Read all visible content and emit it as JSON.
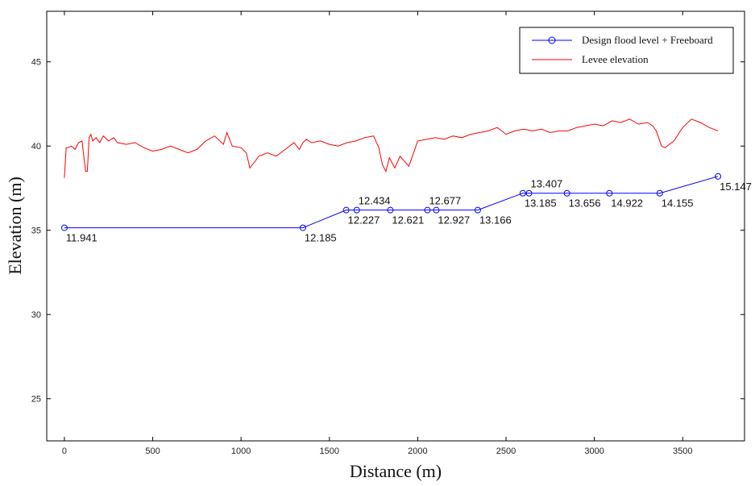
{
  "chart_data": {
    "type": "line",
    "xlabel": "Distance (m)",
    "ylabel": "Elevation (m)",
    "xlim": [
      -100,
      3850
    ],
    "ylim": [
      22.5,
      48
    ],
    "x_ticks": [
      0,
      500,
      1000,
      1500,
      2000,
      2500,
      3000,
      3500
    ],
    "y_ticks": [
      25,
      30,
      35,
      40,
      45
    ],
    "grid": false,
    "legend_position": "top-right",
    "series": [
      {
        "name": "Design flood level + Freeboard",
        "color": "#0000ff",
        "marker": "circle",
        "x": [
          0,
          1350,
          1595,
          1655,
          1845,
          2055,
          2105,
          2340,
          2595,
          2630,
          2845,
          3085,
          3370,
          3700
        ],
        "y": [
          35.15,
          35.15,
          36.2,
          36.2,
          36.2,
          36.2,
          36.2,
          36.2,
          37.2,
          37.2,
          37.2,
          37.2,
          37.2,
          38.2
        ]
      },
      {
        "name": "Levee elevation",
        "color": "#ff0000",
        "marker": "none",
        "x": [
          0,
          10,
          20,
          40,
          60,
          80,
          100,
          120,
          130,
          140,
          150,
          160,
          180,
          200,
          220,
          250,
          280,
          300,
          350,
          400,
          450,
          500,
          550,
          600,
          650,
          700,
          750,
          800,
          850,
          900,
          920,
          950,
          1000,
          1030,
          1050,
          1080,
          1100,
          1150,
          1200,
          1250,
          1300,
          1330,
          1350,
          1370,
          1400,
          1450,
          1500,
          1550,
          1600,
          1650,
          1700,
          1750,
          1780,
          1800,
          1820,
          1840,
          1870,
          1900,
          1950,
          2000,
          2050,
          2100,
          2150,
          2200,
          2250,
          2300,
          2350,
          2400,
          2450,
          2500,
          2550,
          2600,
          2650,
          2700,
          2750,
          2800,
          2850,
          2900,
          2950,
          3000,
          3050,
          3100,
          3150,
          3200,
          3250,
          3300,
          3330,
          3350,
          3380,
          3400,
          3450,
          3500,
          3550,
          3600,
          3650,
          3700
        ],
        "y": [
          38.1,
          39.9,
          39.9,
          40.0,
          39.8,
          40.2,
          40.3,
          38.5,
          38.5,
          40.5,
          40.7,
          40.3,
          40.5,
          40.2,
          40.6,
          40.3,
          40.5,
          40.2,
          40.1,
          40.2,
          39.9,
          39.7,
          39.8,
          40.0,
          39.8,
          39.6,
          39.8,
          40.3,
          40.6,
          40.1,
          40.8,
          40.0,
          39.9,
          39.6,
          38.7,
          39.1,
          39.4,
          39.6,
          39.4,
          39.8,
          40.2,
          39.8,
          40.2,
          40.4,
          40.2,
          40.3,
          40.1,
          40.0,
          40.2,
          40.3,
          40.5,
          40.6,
          39.9,
          38.9,
          38.5,
          39.3,
          38.7,
          39.4,
          38.8,
          40.3,
          40.4,
          40.5,
          40.4,
          40.6,
          40.5,
          40.7,
          40.8,
          40.9,
          41.1,
          40.7,
          40.9,
          41.0,
          40.9,
          41.0,
          40.8,
          40.9,
          40.9,
          41.1,
          41.2,
          41.3,
          41.2,
          41.5,
          41.4,
          41.6,
          41.3,
          41.4,
          41.2,
          40.9,
          40.0,
          39.9,
          40.3,
          41.1,
          41.6,
          41.4,
          41.1,
          40.9
        ]
      }
    ],
    "annotations": [
      {
        "x": 0,
        "y": 35.15,
        "text": "11.941",
        "pos": "below-right"
      },
      {
        "x": 1350,
        "y": 35.15,
        "text": "12.185",
        "pos": "below-right"
      },
      {
        "x": 1595,
        "y": 36.2,
        "text": "12.227",
        "pos": "below-right"
      },
      {
        "x": 1655,
        "y": 36.2,
        "text": "12.434",
        "pos": "above-right"
      },
      {
        "x": 1845,
        "y": 36.2,
        "text": "12.621",
        "pos": "below-right"
      },
      {
        "x": 2055,
        "y": 36.2,
        "text": "12.677",
        "pos": "above-right"
      },
      {
        "x": 2105,
        "y": 36.2,
        "text": "12.927",
        "pos": "below-right"
      },
      {
        "x": 2340,
        "y": 36.2,
        "text": "13.166",
        "pos": "below-right"
      },
      {
        "x": 2595,
        "y": 37.2,
        "text": "13.185",
        "pos": "below-right"
      },
      {
        "x": 2630,
        "y": 37.2,
        "text": "13.407",
        "pos": "above-right"
      },
      {
        "x": 2845,
        "y": 37.2,
        "text": "13.656",
        "pos": "below-right"
      },
      {
        "x": 3085,
        "y": 37.2,
        "text": "14.922",
        "pos": "below-right"
      },
      {
        "x": 3370,
        "y": 37.2,
        "text": "14.155",
        "pos": "below-right"
      },
      {
        "x": 3700,
        "y": 38.2,
        "text": "15.147",
        "pos": "below-right"
      }
    ]
  }
}
